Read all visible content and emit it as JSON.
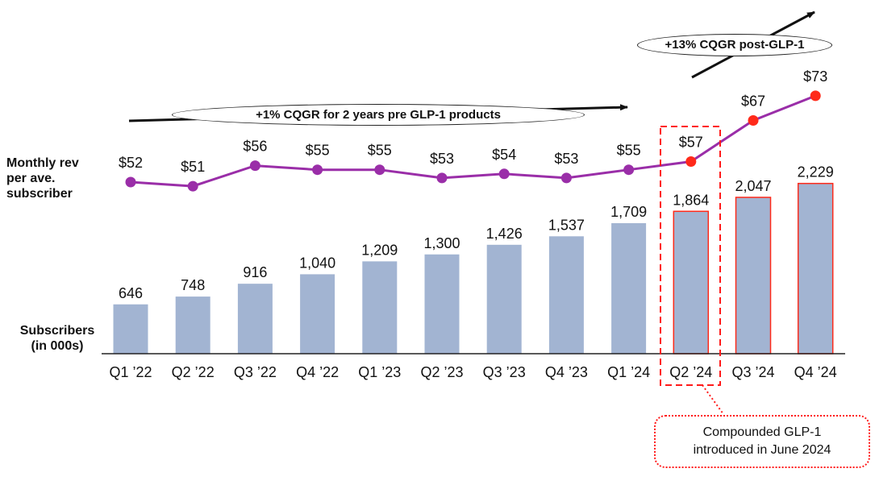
{
  "labels": {
    "monthly_rev": [
      "Monthly rev",
      "per ave.",
      "subscriber"
    ],
    "subscribers": [
      "Subscribers",
      "(in 000s)"
    ]
  },
  "annotations": {
    "pre_glp1": "+1% CQGR for 2 years pre GLP-1 products",
    "post_glp1": "+13% CQGR post-GLP-1",
    "note_line1": "Compounded GLP-1",
    "note_line2": "introduced in June 2024"
  },
  "colors": {
    "bar": "#a2b4d2",
    "bar_highlight_border": "#ff2a1a",
    "line": "#9a2ea8",
    "marker": "#9a2ea8",
    "marker_highlight": "#ff2a1a",
    "axis": "#222222",
    "text": "#111111"
  },
  "chart_data": {
    "type": "bar",
    "categories": [
      "Q1 ’22",
      "Q2 ’22",
      "Q3 ’22",
      "Q4 ’22",
      "Q1 ’23",
      "Q2 ’23",
      "Q3 ’23",
      "Q4 ’23",
      "Q1 ’24",
      "Q2 ’24",
      "Q3 ’24",
      "Q4 ’24"
    ],
    "series": [
      {
        "name": "Subscribers (in 000s)",
        "kind": "bar",
        "values": [
          646,
          748,
          916,
          1040,
          1209,
          1300,
          1426,
          1537,
          1709,
          1864,
          2047,
          2229
        ],
        "labels": [
          "646",
          "748",
          "916",
          "1,040",
          "1,209",
          "1,300",
          "1,426",
          "1,537",
          "1,709",
          "1,864",
          "2,047",
          "2,229"
        ],
        "highlighted": [
          false,
          false,
          false,
          false,
          false,
          false,
          false,
          false,
          false,
          true,
          true,
          true
        ]
      },
      {
        "name": "Monthly rev per ave. subscriber",
        "kind": "line",
        "values": [
          52,
          51,
          56,
          55,
          55,
          53,
          54,
          53,
          55,
          57,
          67,
          73
        ],
        "labels": [
          "$52",
          "$51",
          "$56",
          "$55",
          "$55",
          "$53",
          "$54",
          "$53",
          "$55",
          "$57",
          "$67",
          "$73"
        ],
        "highlighted": [
          false,
          false,
          false,
          false,
          false,
          false,
          false,
          false,
          false,
          true,
          true,
          true
        ]
      }
    ],
    "highlight_box_category": "Q2 ’24",
    "xlabel": "",
    "ylabel": ""
  }
}
